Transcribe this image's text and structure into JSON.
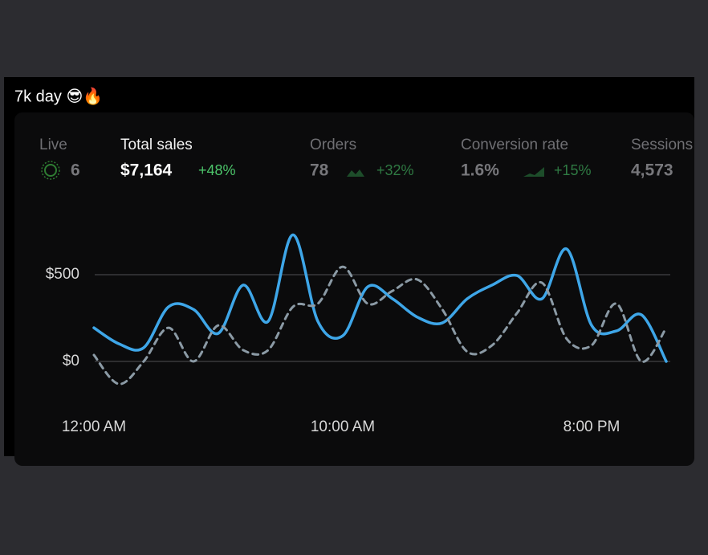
{
  "post": {
    "text": "7k day 😎🔥"
  },
  "stats": [
    {
      "label": "Live",
      "value": "6"
    },
    {
      "label": "Total sales",
      "value": "$7,164",
      "change": "+48%"
    },
    {
      "label": "Orders",
      "value": "78",
      "change": "+32%"
    },
    {
      "label": "Conversion rate",
      "value": "1.6%",
      "change": "+15%"
    },
    {
      "label": "Sessions",
      "value": "4,573"
    }
  ],
  "chart_data": {
    "type": "line",
    "x": [
      0,
      1,
      2,
      3,
      4,
      5,
      6,
      7,
      8,
      9,
      10,
      11,
      12,
      13,
      14,
      15,
      16,
      17,
      18,
      19,
      20,
      21,
      22,
      23
    ],
    "series": [
      {
        "color": "#3ea6e8",
        "dashed": false,
        "values": [
          194,
          102,
          79,
          315,
          300,
          162,
          440,
          231,
          730,
          231,
          148,
          430,
          361,
          255,
          222,
          361,
          440,
          495,
          361,
          648,
          208,
          176,
          269,
          0
        ]
      },
      {
        "color": "#8b9aa5",
        "dashed": true,
        "values": [
          37,
          -130,
          0,
          194,
          0,
          208,
          65,
          65,
          315,
          333,
          546,
          333,
          407,
          472,
          300,
          56,
          93,
          278,
          454,
          130,
          93,
          333,
          0,
          194
        ]
      }
    ],
    "xlim": [
      0,
      23
    ],
    "xticks": [
      {
        "value": 0,
        "label": "12:00 AM"
      },
      {
        "value": 10,
        "label": "10:00 AM"
      },
      {
        "value": 20,
        "label": "8:00 PM"
      }
    ],
    "ylim": [
      -150,
      800
    ],
    "yticks": [
      {
        "value": 0,
        "label": "$0"
      },
      {
        "value": 500,
        "label": "$500"
      }
    ],
    "grid": true
  }
}
